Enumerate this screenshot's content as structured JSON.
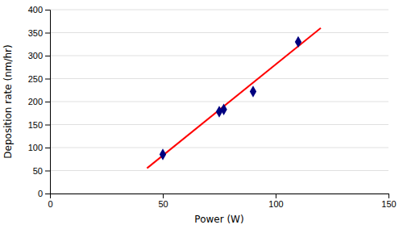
{
  "chart_data": {
    "type": "scatter",
    "xlabel": "Power (W)",
    "ylabel": "Deposition rate (nm/hr)",
    "xlim": [
      0,
      150
    ],
    "ylim": [
      0,
      400
    ],
    "xticks": [
      0,
      50,
      100,
      150
    ],
    "yticks": [
      0,
      50,
      100,
      150,
      200,
      250,
      300,
      350,
      400
    ],
    "grid": "y",
    "series": [
      {
        "type": "line",
        "color": "#FF0000",
        "x": [
          43,
          120
        ],
        "values": [
          55,
          360
        ]
      },
      {
        "type": "scatter",
        "color": "#000080",
        "marker": "diamond",
        "x": [
          50,
          75,
          77,
          90,
          110
        ],
        "values": [
          85,
          178,
          183,
          222,
          330
        ]
      }
    ]
  }
}
